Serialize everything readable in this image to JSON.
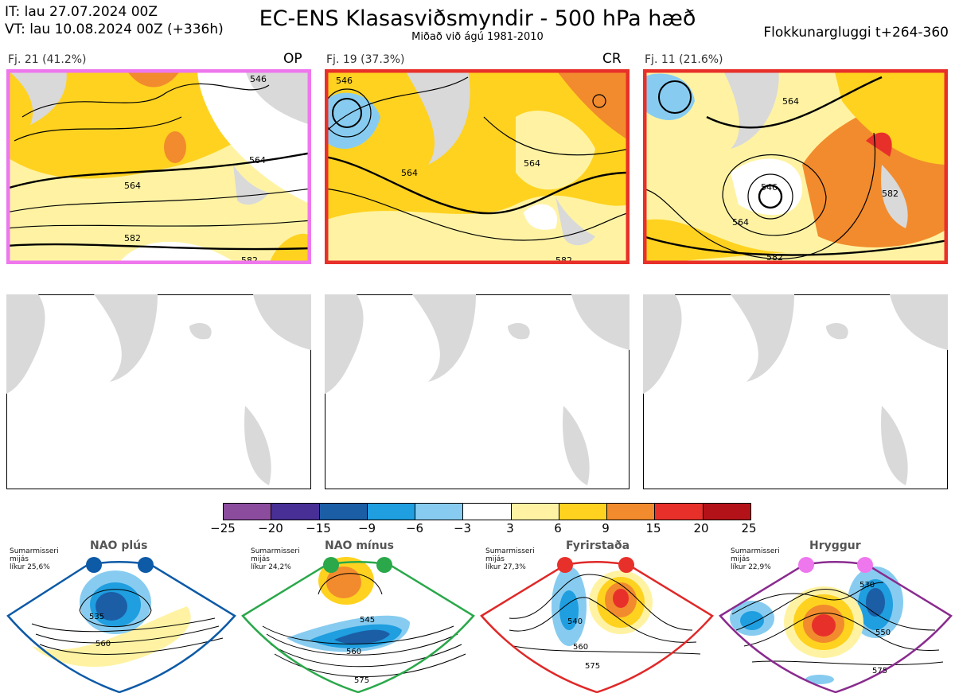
{
  "header": {
    "it_line": "IT: lau 27.07.2024 00Z",
    "vt_line": "VT: lau 10.08.2024 00Z  (+336h)",
    "title": "EC-ENS Klasasviðsmyndir - 500 hPa hæð",
    "subtitle": "Miðað við ágú 1981-2010",
    "window": "Flokkunargluggi t+264-360"
  },
  "panels": [
    {
      "label": "Fj. 21 (41.2%)",
      "tag": "OP",
      "border": "#ee77ee",
      "contours": [
        "564",
        "564",
        "582",
        "582",
        "546"
      ]
    },
    {
      "label": "Fj. 19 (37.3%)",
      "tag": "CR",
      "border": "#e8302a",
      "contours": [
        "564",
        "564",
        "582",
        "546"
      ]
    },
    {
      "label": "Fj. 11 (21.6%)",
      "tag": "",
      "border": "#e8302a",
      "contours": [
        "564",
        "546",
        "564",
        "582",
        "582"
      ]
    }
  ],
  "colorbar": {
    "colors": [
      "#8b4c9e",
      "#472f95",
      "#1b5ea6",
      "#1f9ee0",
      "#87ccf0",
      "#ffffff",
      "#fff3a3",
      "#ffd21f",
      "#f28b2d",
      "#e8302a",
      "#b31219"
    ],
    "ticks": [
      "−25",
      "−20",
      "−15",
      "−9",
      "−6",
      "−3",
      "3",
      "6",
      "9",
      "15",
      "20",
      "25"
    ]
  },
  "regimes": [
    {
      "name": "NAO plús",
      "note": [
        "Sumarmisseri",
        "mijás",
        "líkur 25,6%"
      ],
      "color": "#0d5aa7",
      "dot": "#0d5aa7",
      "contours": [
        "535",
        "560"
      ]
    },
    {
      "name": "NAO mínus",
      "note": [
        "Sumarmisseri",
        "mijás",
        "líkur 24,2%"
      ],
      "color": "#2aa84a",
      "dot": "#2aa84a",
      "contours": [
        "545",
        "560",
        "575"
      ]
    },
    {
      "name": "Fyrirstaða",
      "note": [
        "Sumarmisseri",
        "mijás",
        "líkur 27,3%"
      ],
      "color": "#e02828",
      "dot": "#e8302a",
      "contours": [
        "540",
        "560",
        "575"
      ]
    },
    {
      "name": "Hryggur",
      "note": [
        "Sumarmisseri",
        "mijás",
        "líkur 22,9%"
      ],
      "color": "#8a2b8f",
      "dot": "#ee77ee",
      "contours": [
        "530",
        "550",
        "575"
      ]
    }
  ]
}
